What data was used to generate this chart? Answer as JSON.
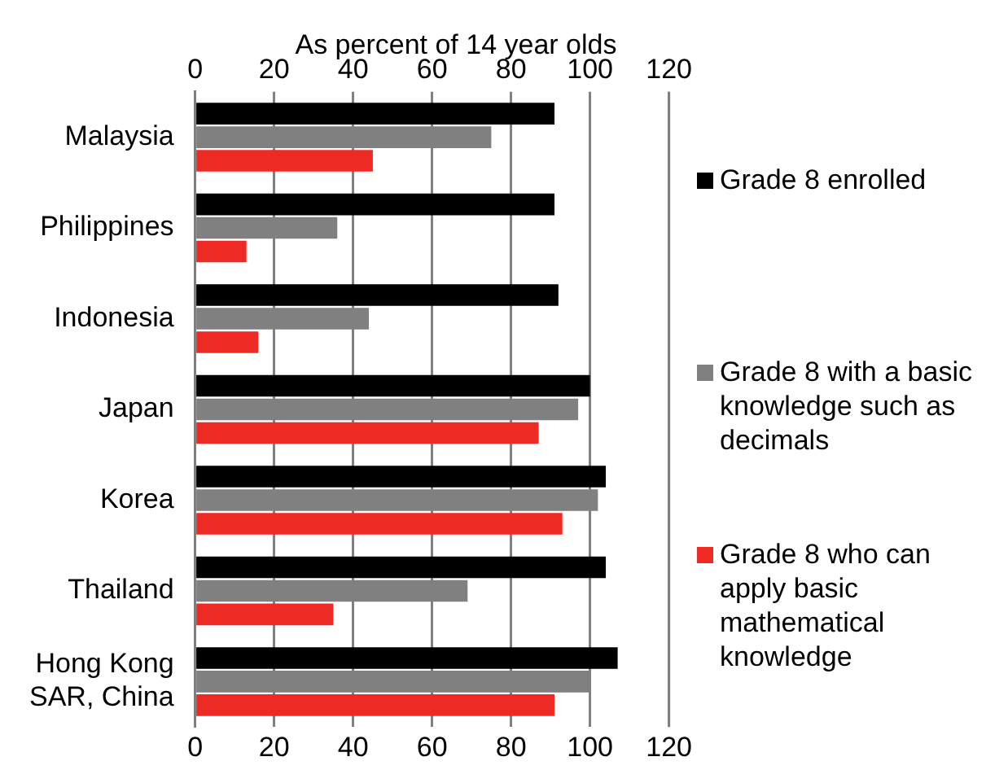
{
  "chart_data": {
    "type": "bar",
    "orientation": "horizontal",
    "x2label": "As percent of 14 year olds",
    "categories": [
      "Malaysia",
      "Philippines",
      "Indonesia",
      "Japan",
      "Korea",
      "Thailand",
      "Hong Kong SAR, China"
    ],
    "series": [
      {
        "name": "Grade 8 enrolled",
        "color": "#000000",
        "values": [
          91,
          91,
          92,
          100,
          104,
          104,
          107
        ]
      },
      {
        "name": "Grade 8 with a basic knowledge such as decimals",
        "color": "#808080",
        "values": [
          75,
          36,
          44,
          97,
          102,
          69,
          100
        ]
      },
      {
        "name": "Grade 8 who can apply basic mathematical knowledge",
        "color": "#ee2a24",
        "values": [
          45,
          13,
          16,
          87,
          93,
          35,
          91
        ]
      }
    ],
    "xlim": [
      0,
      120
    ],
    "xticks": [
      0,
      20,
      40,
      60,
      80,
      100,
      120
    ],
    "x2lim": [
      0,
      120
    ],
    "x2ticks": [
      0,
      20,
      40,
      60,
      80,
      100,
      120
    ],
    "grid": "x",
    "legend": "right"
  }
}
